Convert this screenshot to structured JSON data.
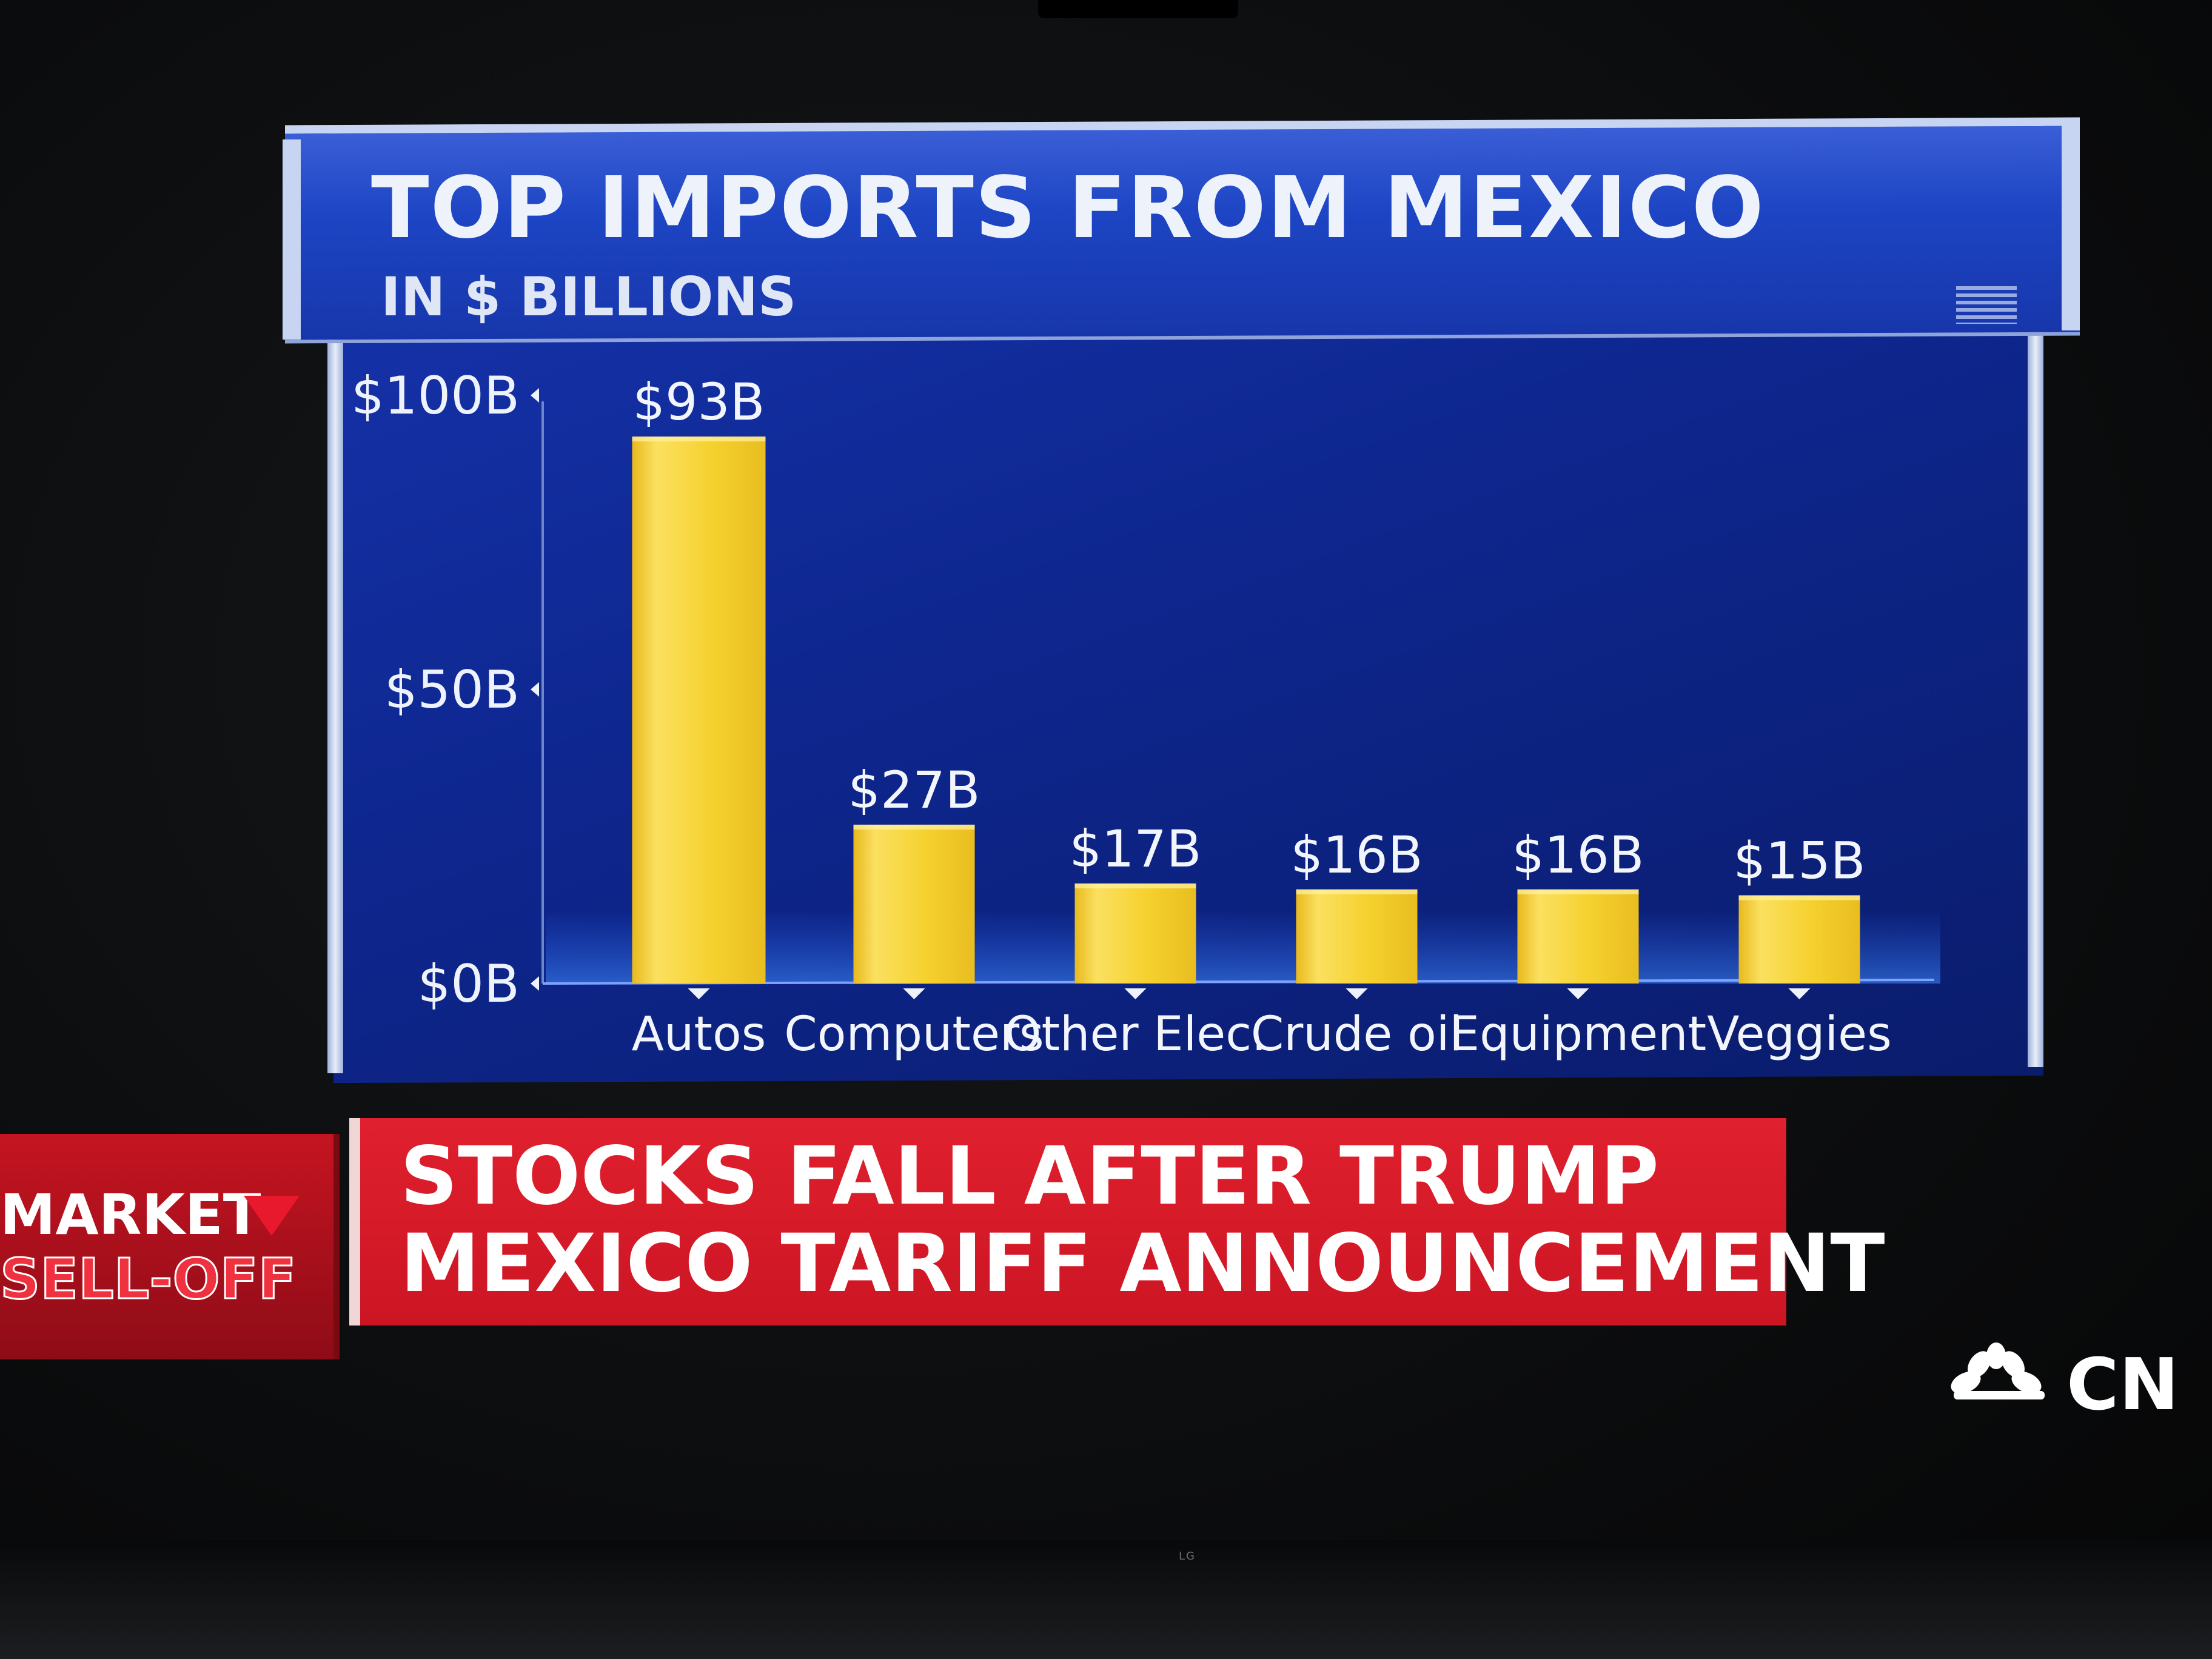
{
  "chart_data": {
    "type": "bar",
    "title": "TOP IMPORTS FROM MEXICO",
    "subtitle": "IN $ BILLIONS",
    "categories": [
      "Autos",
      "Computers",
      "Other Elec.",
      "Crude oil",
      "Equipment",
      "Veggies"
    ],
    "values": [
      93,
      27,
      17,
      16,
      16,
      15
    ],
    "data_labels": [
      "$93B",
      "$27B",
      "$17B",
      "$16B",
      "$16B",
      "$15B"
    ],
    "yticks": [
      0,
      50,
      100
    ],
    "ytick_labels": [
      "$0B",
      "$50B",
      "$100B"
    ],
    "ylim": [
      0,
      100
    ],
    "bar_color": "#f5d12e",
    "grid": false,
    "legend": "none"
  },
  "ticker": {
    "tag_line1": "MARKET",
    "tag_line2": "SELL-OFF",
    "headline_line1": "STOCKS FALL AFTER TRUMP",
    "headline_line2": "MEXICO TARIFF ANNOUNCEMENT"
  },
  "network_logo": "CN",
  "tv_brand": "LG",
  "colors": {
    "panel_blue": "#0e2790",
    "header_blue": "#1d45c4",
    "banner_red": "#d81a28",
    "bar_yellow": "#f5d12e"
  }
}
